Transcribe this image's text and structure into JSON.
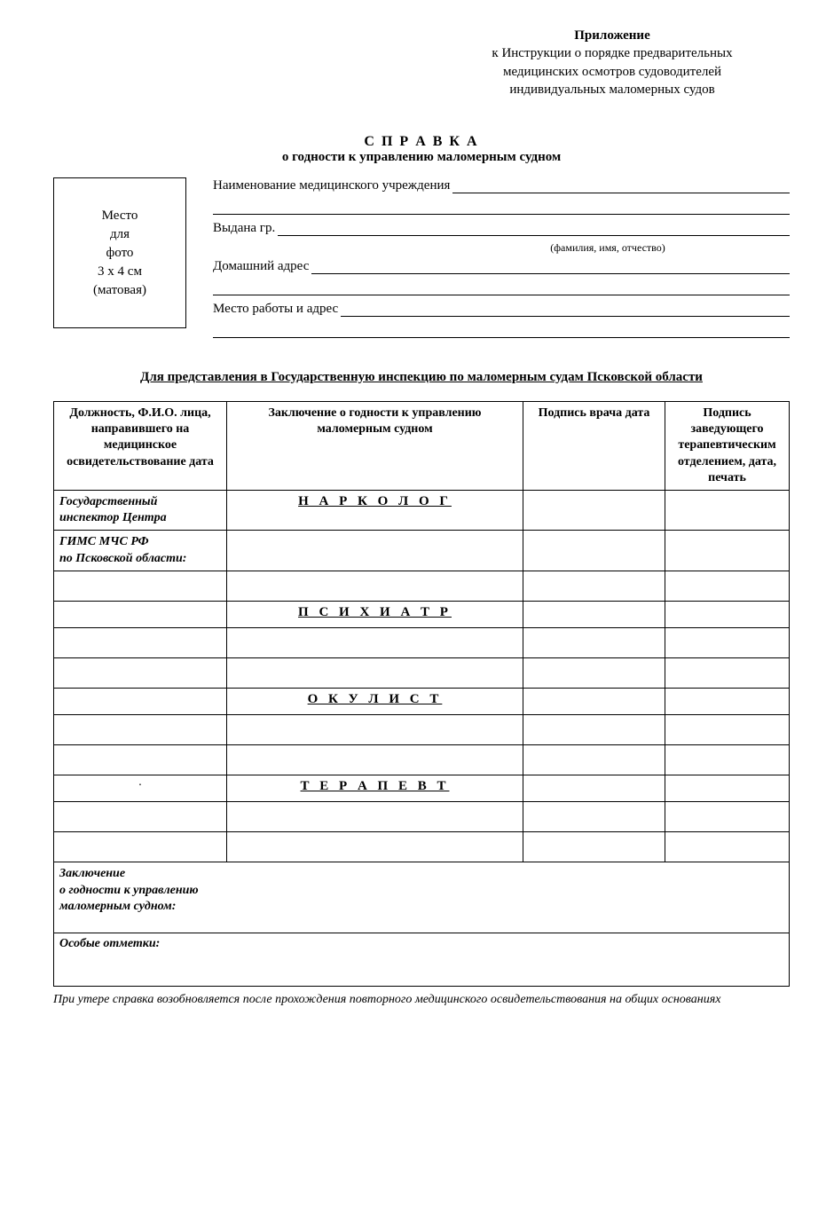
{
  "appendix": {
    "title": "Приложение",
    "line1": "к Инструкции о порядке предварительных",
    "line2": "медицинских осмотров судоводителей",
    "line3": "индивидуальных маломерных судов"
  },
  "title": {
    "main": "С П Р А В К А",
    "sub": "о годности к управлению маломерным судном"
  },
  "photo": {
    "l1": "Место",
    "l2": "для",
    "l3": "фото",
    "l4": "3 х 4 см",
    "l5": "(матовая)"
  },
  "fields": {
    "institution": "Наименование медицинского учреждения",
    "issued": "Выдана гр.",
    "fio_hint": "(фамилия, имя, отчество)",
    "address": "Домашний адрес",
    "workplace": "Место работы и адрес"
  },
  "submission": "Для представления в Государственную инспекцию по маломерным судам Псковской области",
  "headers": {
    "c1": "Должность, Ф.И.О. лица, направившего на медицинское освидетельствование дата",
    "c2": "Заключение о годности к управлению маломерным судном",
    "c3": "Подпись врача дата",
    "c4": "Подпись заведующего терапевтическим отделением, дата, печать"
  },
  "inspector": {
    "l1": "Государственный",
    "l2": "инспектор Центра",
    "l3": "ГИМС МЧС РФ",
    "l4": "по Псковской области:"
  },
  "specialists": {
    "s1": "Н А Р К О Л О Г",
    "s2": "П С И Х И А Т Р",
    "s3": "О К У Л И С Т",
    "s4": "Т Е Р А П Е В Т"
  },
  "conclusion": {
    "l1": "Заключение",
    "l2": "о годности к управлению",
    "l3": "маломерным судном:"
  },
  "notes": "Особые отметки:",
  "footnote": "При утере справка возобновляется после прохождения повторного медицинского освидетельствования на общих основаниях"
}
